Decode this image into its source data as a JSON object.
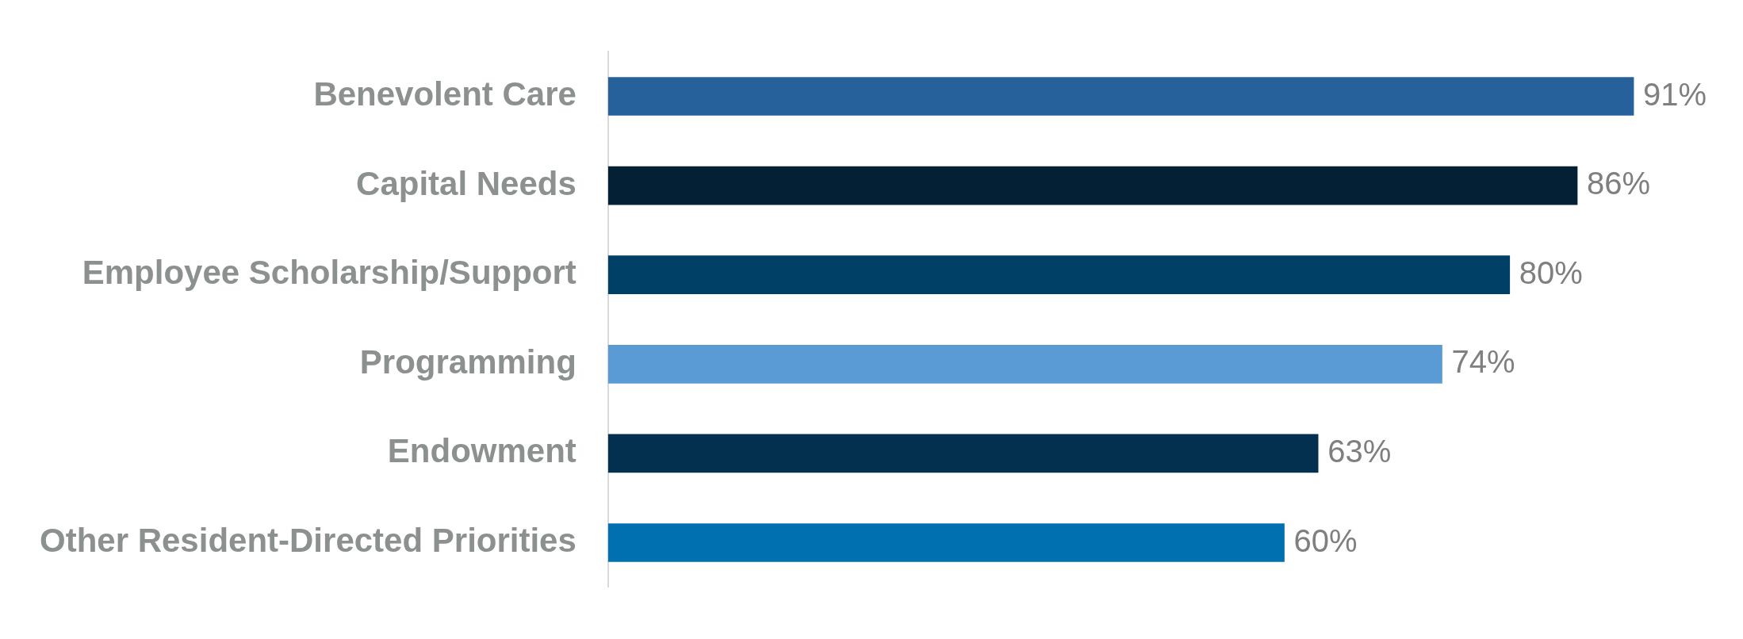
{
  "chart_data": {
    "type": "bar",
    "orientation": "horizontal",
    "categories": [
      "Benevolent Care",
      "Capital Needs",
      "Employee Scholarship/Support",
      "Programming",
      "Endowment",
      "Other Resident-Directed Priorities"
    ],
    "values": [
      91,
      86,
      80,
      74,
      63,
      60
    ],
    "colors": [
      "#26619c",
      "#032035",
      "#003f66",
      "#5b9bd5",
      "#03304f",
      "#0070b0"
    ],
    "value_labels": [
      "91%",
      "86%",
      "80%",
      "74%",
      "63%",
      "60%"
    ],
    "legend": false,
    "tick_labels": "y"
  }
}
